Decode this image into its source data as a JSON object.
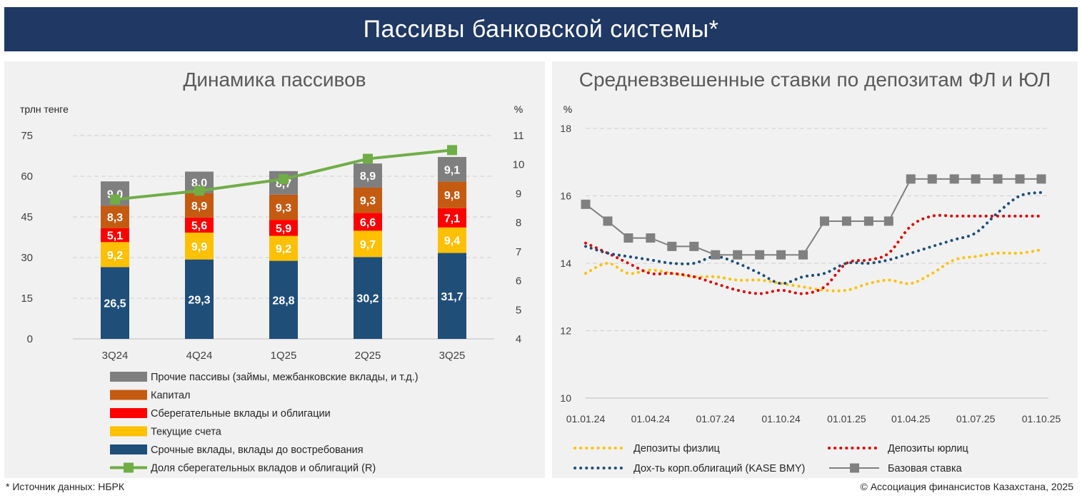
{
  "header": {
    "title": "Пассивы банковской системы*"
  },
  "left_panel": {
    "title": "Динамика пассивов"
  },
  "right_panel": {
    "title": "Средневзвешенные ставки по депозитам ФЛ и ЮЛ"
  },
  "footer": {
    "source": "* Источник данных: НБРК",
    "copyright": "© Ассоциация финансистов Казахстана, 2025"
  },
  "chart_data": [
    {
      "type": "bar",
      "title": "Динамика пассивов",
      "ylabel": "трлн тенге",
      "ylabel_right": "%",
      "ylim": [
        0,
        75
      ],
      "y_ticks": [
        0,
        15,
        30,
        45,
        60,
        75
      ],
      "ylim_right": [
        4,
        11
      ],
      "y_ticks_right": [
        4,
        5,
        6,
        7,
        8,
        9,
        10,
        11
      ],
      "stacked": true,
      "categories": [
        "3Q24",
        "4Q24",
        "1Q25",
        "2Q25",
        "3Q25"
      ],
      "series": [
        {
          "name": "Срочные вклады, вклады до востребования",
          "color": "#1f4e79",
          "values": [
            26.5,
            29.3,
            28.8,
            30.2,
            31.7
          ],
          "labels": [
            "26,5",
            "29,3",
            "28,8",
            "30,2",
            "31,7"
          ]
        },
        {
          "name": "Текущие счета",
          "color": "#ffc000",
          "values": [
            9.2,
            9.9,
            9.2,
            9.7,
            9.4
          ],
          "labels": [
            "9,2",
            "9,9",
            "9,2",
            "9,7",
            "9,4"
          ]
        },
        {
          "name": "Сберегательные вклады и облигации",
          "color": "#ff0000",
          "values": [
            5.1,
            5.6,
            5.9,
            6.6,
            7.1
          ],
          "labels": [
            "5,1",
            "5,6",
            "5,9",
            "6,6",
            "7,1"
          ]
        },
        {
          "name": "Капитал",
          "color": "#c55a11",
          "values": [
            8.3,
            8.9,
            9.3,
            9.3,
            9.8
          ],
          "labels": [
            "8,3",
            "8,9",
            "9,3",
            "9,3",
            "9,8"
          ]
        },
        {
          "name": "Прочие пассивы (займы, межбанковские вклады, и т.д.)",
          "color": "#7f7f7f",
          "values": [
            9.0,
            8.0,
            8.7,
            8.9,
            9.1
          ],
          "labels": [
            "9,0",
            "8,0",
            "8,7",
            "8,9",
            "9,1"
          ]
        }
      ],
      "line_series": {
        "name": "Доля сберегательных вкладов и облигаций (R)",
        "color": "#70ad47",
        "axis": "right",
        "values": [
          8.8,
          9.1,
          9.5,
          10.2,
          10.5
        ]
      },
      "legend_order": [
        "Прочие пассивы (займы, межбанковские вклады, и т.д.)",
        "Капитал",
        "Сберегательные вклады и облигации",
        "Текущие счета",
        "Срочные вклады, вклады до востребования",
        "Доля сберегательных вкладов и облигаций (R)"
      ],
      "legend_position": "bottom",
      "grid": true
    },
    {
      "type": "line",
      "title": "Средневзвешенные ставки по депозитам ФЛ и ЮЛ",
      "ylabel": "%",
      "ylim": [
        10,
        18
      ],
      "y_ticks": [
        10,
        12,
        14,
        16,
        18
      ],
      "x_range": [
        "2024-01-01",
        "2025-10-01"
      ],
      "x_tick_labels": [
        "01.01.24",
        "01.04.24",
        "01.07.24",
        "01.10.24",
        "01.01.25",
        "01.04.25",
        "01.07.25",
        "01.10.25"
      ],
      "x_tick_dates": [
        "2024-01-01",
        "2024-04-01",
        "2024-07-01",
        "2024-10-01",
        "2025-01-01",
        "2025-04-01",
        "2025-07-01",
        "2025-10-01"
      ],
      "grid": true,
      "legend_position": "bottom",
      "series": [
        {
          "name": "Депозиты физлиц",
          "color": "#ffc000",
          "style": "dotted",
          "x": [
            "2024-01-01",
            "2024-02-01",
            "2024-03-01",
            "2024-04-01",
            "2024-05-01",
            "2024-06-01",
            "2024-07-01",
            "2024-08-01",
            "2024-09-01",
            "2024-10-01",
            "2024-11-01",
            "2024-12-01",
            "2025-01-01",
            "2025-02-01",
            "2025-03-01",
            "2025-04-01",
            "2025-05-01",
            "2025-06-01",
            "2025-07-01",
            "2025-08-01",
            "2025-09-01",
            "2025-10-01"
          ],
          "y": [
            13.7,
            14.0,
            13.7,
            13.8,
            13.7,
            13.6,
            13.6,
            13.5,
            13.5,
            13.4,
            13.3,
            13.2,
            13.2,
            13.4,
            13.5,
            13.4,
            13.7,
            14.1,
            14.2,
            14.3,
            14.3,
            14.4
          ]
        },
        {
          "name": "Депозиты юрлиц",
          "color": "#e00000",
          "style": "dotted",
          "x": [
            "2024-01-01",
            "2024-02-01",
            "2024-03-01",
            "2024-04-01",
            "2024-05-01",
            "2024-06-01",
            "2024-07-01",
            "2024-08-01",
            "2024-09-01",
            "2024-10-01",
            "2024-11-01",
            "2024-12-01",
            "2025-01-01",
            "2025-02-01",
            "2025-03-01",
            "2025-04-01",
            "2025-05-01",
            "2025-06-01",
            "2025-07-01",
            "2025-08-01",
            "2025-09-01",
            "2025-10-01"
          ],
          "y": [
            14.6,
            14.3,
            14.0,
            13.7,
            13.7,
            13.6,
            13.4,
            13.2,
            13.1,
            13.2,
            13.1,
            13.3,
            14.0,
            14.1,
            14.3,
            15.1,
            15.4,
            15.4,
            15.4,
            15.4,
            15.4,
            15.4
          ]
        },
        {
          "name": "Дох-ть корп.облигаций (KASE BMY)",
          "color": "#1f4e79",
          "style": "dotted",
          "x": [
            "2024-01-01",
            "2024-02-01",
            "2024-03-01",
            "2024-04-01",
            "2024-05-01",
            "2024-06-01",
            "2024-07-01",
            "2024-08-01",
            "2024-09-01",
            "2024-10-01",
            "2024-11-01",
            "2024-12-01",
            "2025-01-01",
            "2025-02-01",
            "2025-03-01",
            "2025-04-01",
            "2025-05-01",
            "2025-06-01",
            "2025-07-01",
            "2025-08-01",
            "2025-09-01",
            "2025-10-01"
          ],
          "y": [
            14.5,
            14.3,
            14.2,
            14.1,
            14.0,
            14.0,
            14.2,
            14.0,
            13.7,
            13.4,
            13.6,
            13.7,
            14.0,
            14.0,
            14.1,
            14.3,
            14.5,
            14.7,
            14.9,
            15.5,
            16.0,
            16.1
          ]
        },
        {
          "name": "Базовая ставка",
          "color": "#808080",
          "style": "step",
          "marker": "square",
          "x": [
            "2024-01-01",
            "2024-02-01",
            "2024-03-01",
            "2024-04-01",
            "2024-05-01",
            "2024-06-01",
            "2024-07-01",
            "2024-08-01",
            "2024-09-01",
            "2024-10-01",
            "2024-11-01",
            "2024-12-01",
            "2025-01-01",
            "2025-02-01",
            "2025-03-01",
            "2025-04-01",
            "2025-05-01",
            "2025-06-01",
            "2025-07-01",
            "2025-08-01",
            "2025-09-01",
            "2025-10-01"
          ],
          "y": [
            15.75,
            15.25,
            14.75,
            14.75,
            14.5,
            14.5,
            14.25,
            14.25,
            14.25,
            14.25,
            14.25,
            15.25,
            15.25,
            15.25,
            15.25,
            16.5,
            16.5,
            16.5,
            16.5,
            16.5,
            16.5,
            16.5
          ]
        }
      ],
      "legend_rows": [
        [
          "Депозиты физлиц",
          "Депозиты юрлиц"
        ],
        [
          "Дох-ть корп.облигаций (KASE BMY)",
          "Базовая ставка"
        ]
      ]
    }
  ]
}
